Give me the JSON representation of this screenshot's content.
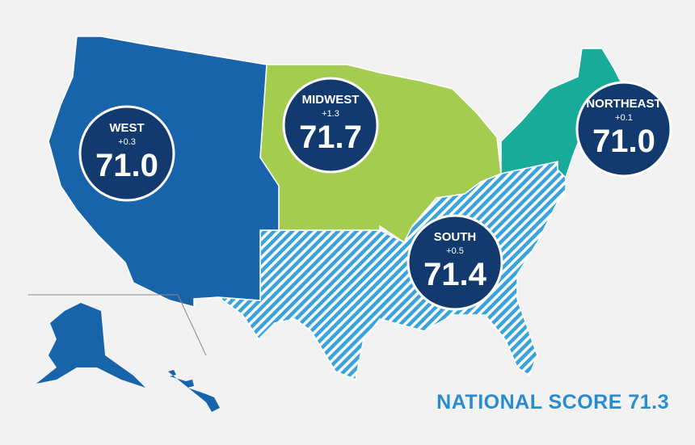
{
  "regions": [
    {
      "name": "WEST",
      "change": "+0.3",
      "score": "71.0"
    },
    {
      "name": "MIDWEST",
      "change": "+1.3",
      "score": "71.7"
    },
    {
      "name": "NORTHEAST",
      "change": "+0.1",
      "score": "71.0"
    },
    {
      "name": "SOUTH",
      "change": "+0.5",
      "score": "71.4"
    }
  ],
  "national": {
    "label": "NATIONAL SCORE",
    "score": "71.3"
  }
}
